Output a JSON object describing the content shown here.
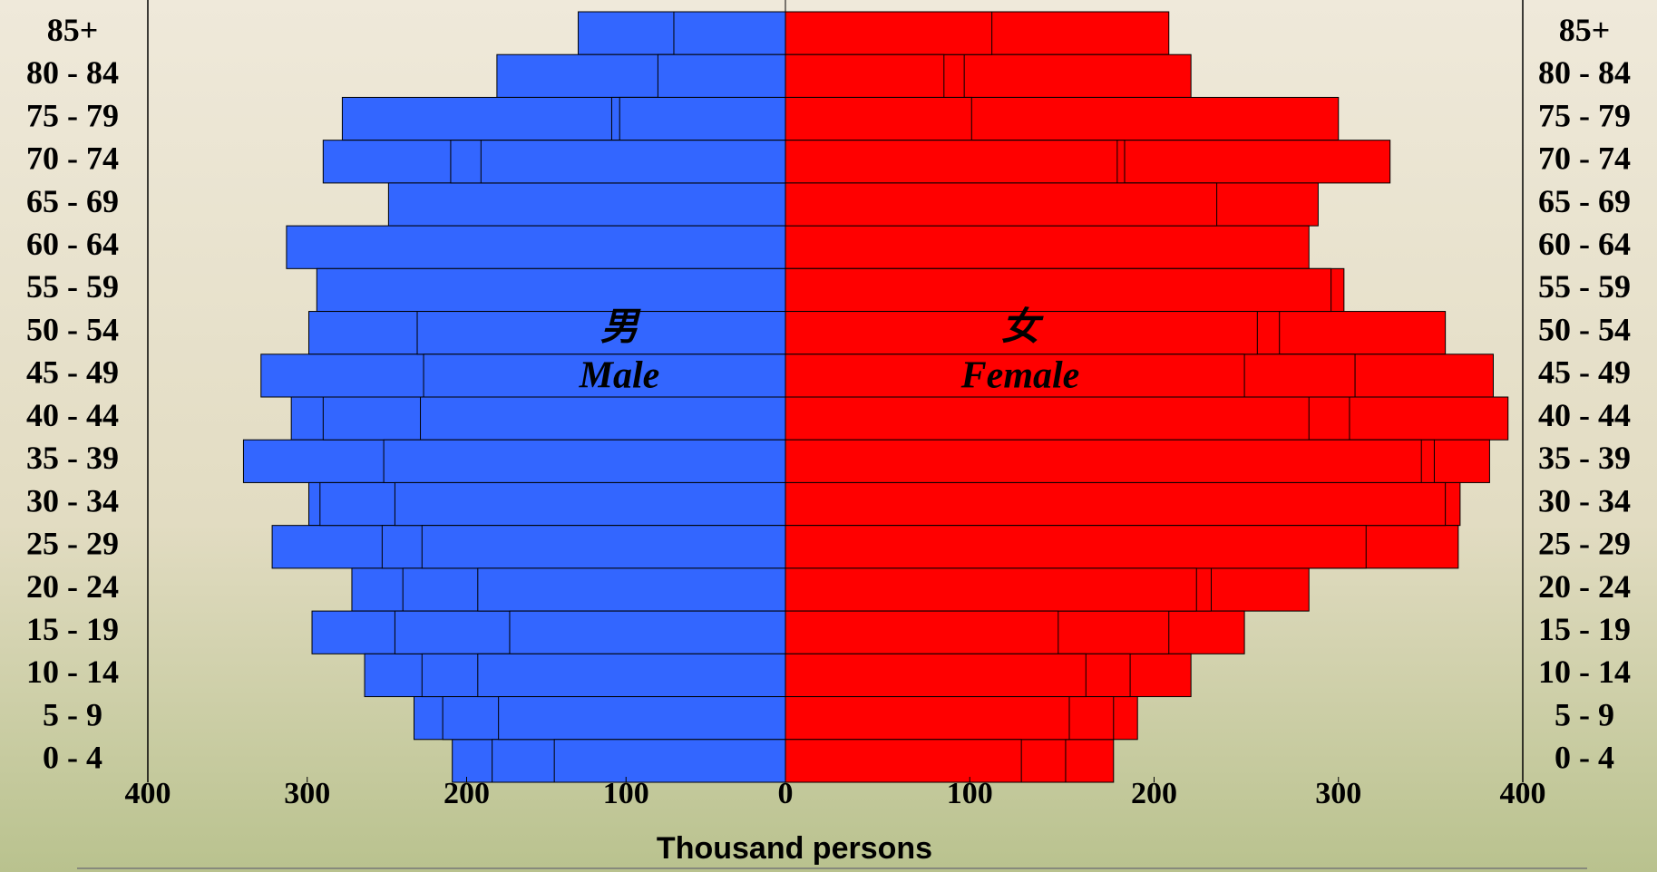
{
  "chart_data": {
    "type": "pyramid",
    "categories": [
      "85+",
      "80 - 84",
      "75 - 79",
      "70 - 74",
      "65 - 69",
      "60 - 64",
      "55 - 59",
      "50 - 54",
      "45 - 49",
      "40 - 44",
      "35 - 39",
      "30 - 34",
      "25 - 29",
      "20 - 24",
      "15 - 19",
      "10 - 14",
      "5 - 9",
      "0 - 4"
    ],
    "series": [
      {
        "side": "left",
        "color": "#3366ff",
        "values": [
          130,
          181,
          278,
          290,
          249,
          313,
          294,
          299,
          329,
          310,
          340,
          299,
          322,
          272,
          297,
          264,
          233,
          209
        ]
      },
      {
        "side": "left",
        "color": "#3366ff",
        "values": [
          null,
          null,
          109,
          210,
          null,
          null,
          null,
          null,
          null,
          290,
          null,
          292,
          253,
          240,
          245,
          228,
          215,
          184
        ]
      },
      {
        "side": "left",
        "color": "#3366ff",
        "values": [
          70,
          80,
          104,
          191,
          null,
          null,
          null,
          231,
          227,
          229,
          252,
          245,
          228,
          193,
          173,
          193,
          180,
          145
        ]
      },
      {
        "side": "right",
        "color": "#ff0000",
        "values": [
          208,
          220,
          300,
          328,
          289,
          284,
          303,
          358,
          384,
          392,
          382,
          366,
          365,
          284,
          249,
          220,
          191,
          178
        ]
      },
      {
        "side": "right",
        "color": "#ff0000",
        "values": [
          null,
          97,
          null,
          184,
          null,
          null,
          null,
          268,
          309,
          306,
          352,
          null,
          null,
          231,
          208,
          187,
          178,
          152
        ]
      },
      {
        "side": "right",
        "color": "#ff0000",
        "values": [
          112,
          86,
          101,
          180,
          234,
          null,
          296,
          256,
          249,
          284,
          345,
          358,
          315,
          223,
          148,
          163,
          154,
          128
        ]
      }
    ],
    "xlim": [
      0,
      400
    ],
    "xticks": [
      0,
      100,
      200,
      300,
      400
    ],
    "xlabel": "Thousand persons",
    "annotations": [
      "男",
      "Male",
      "女",
      "Female"
    ]
  }
}
